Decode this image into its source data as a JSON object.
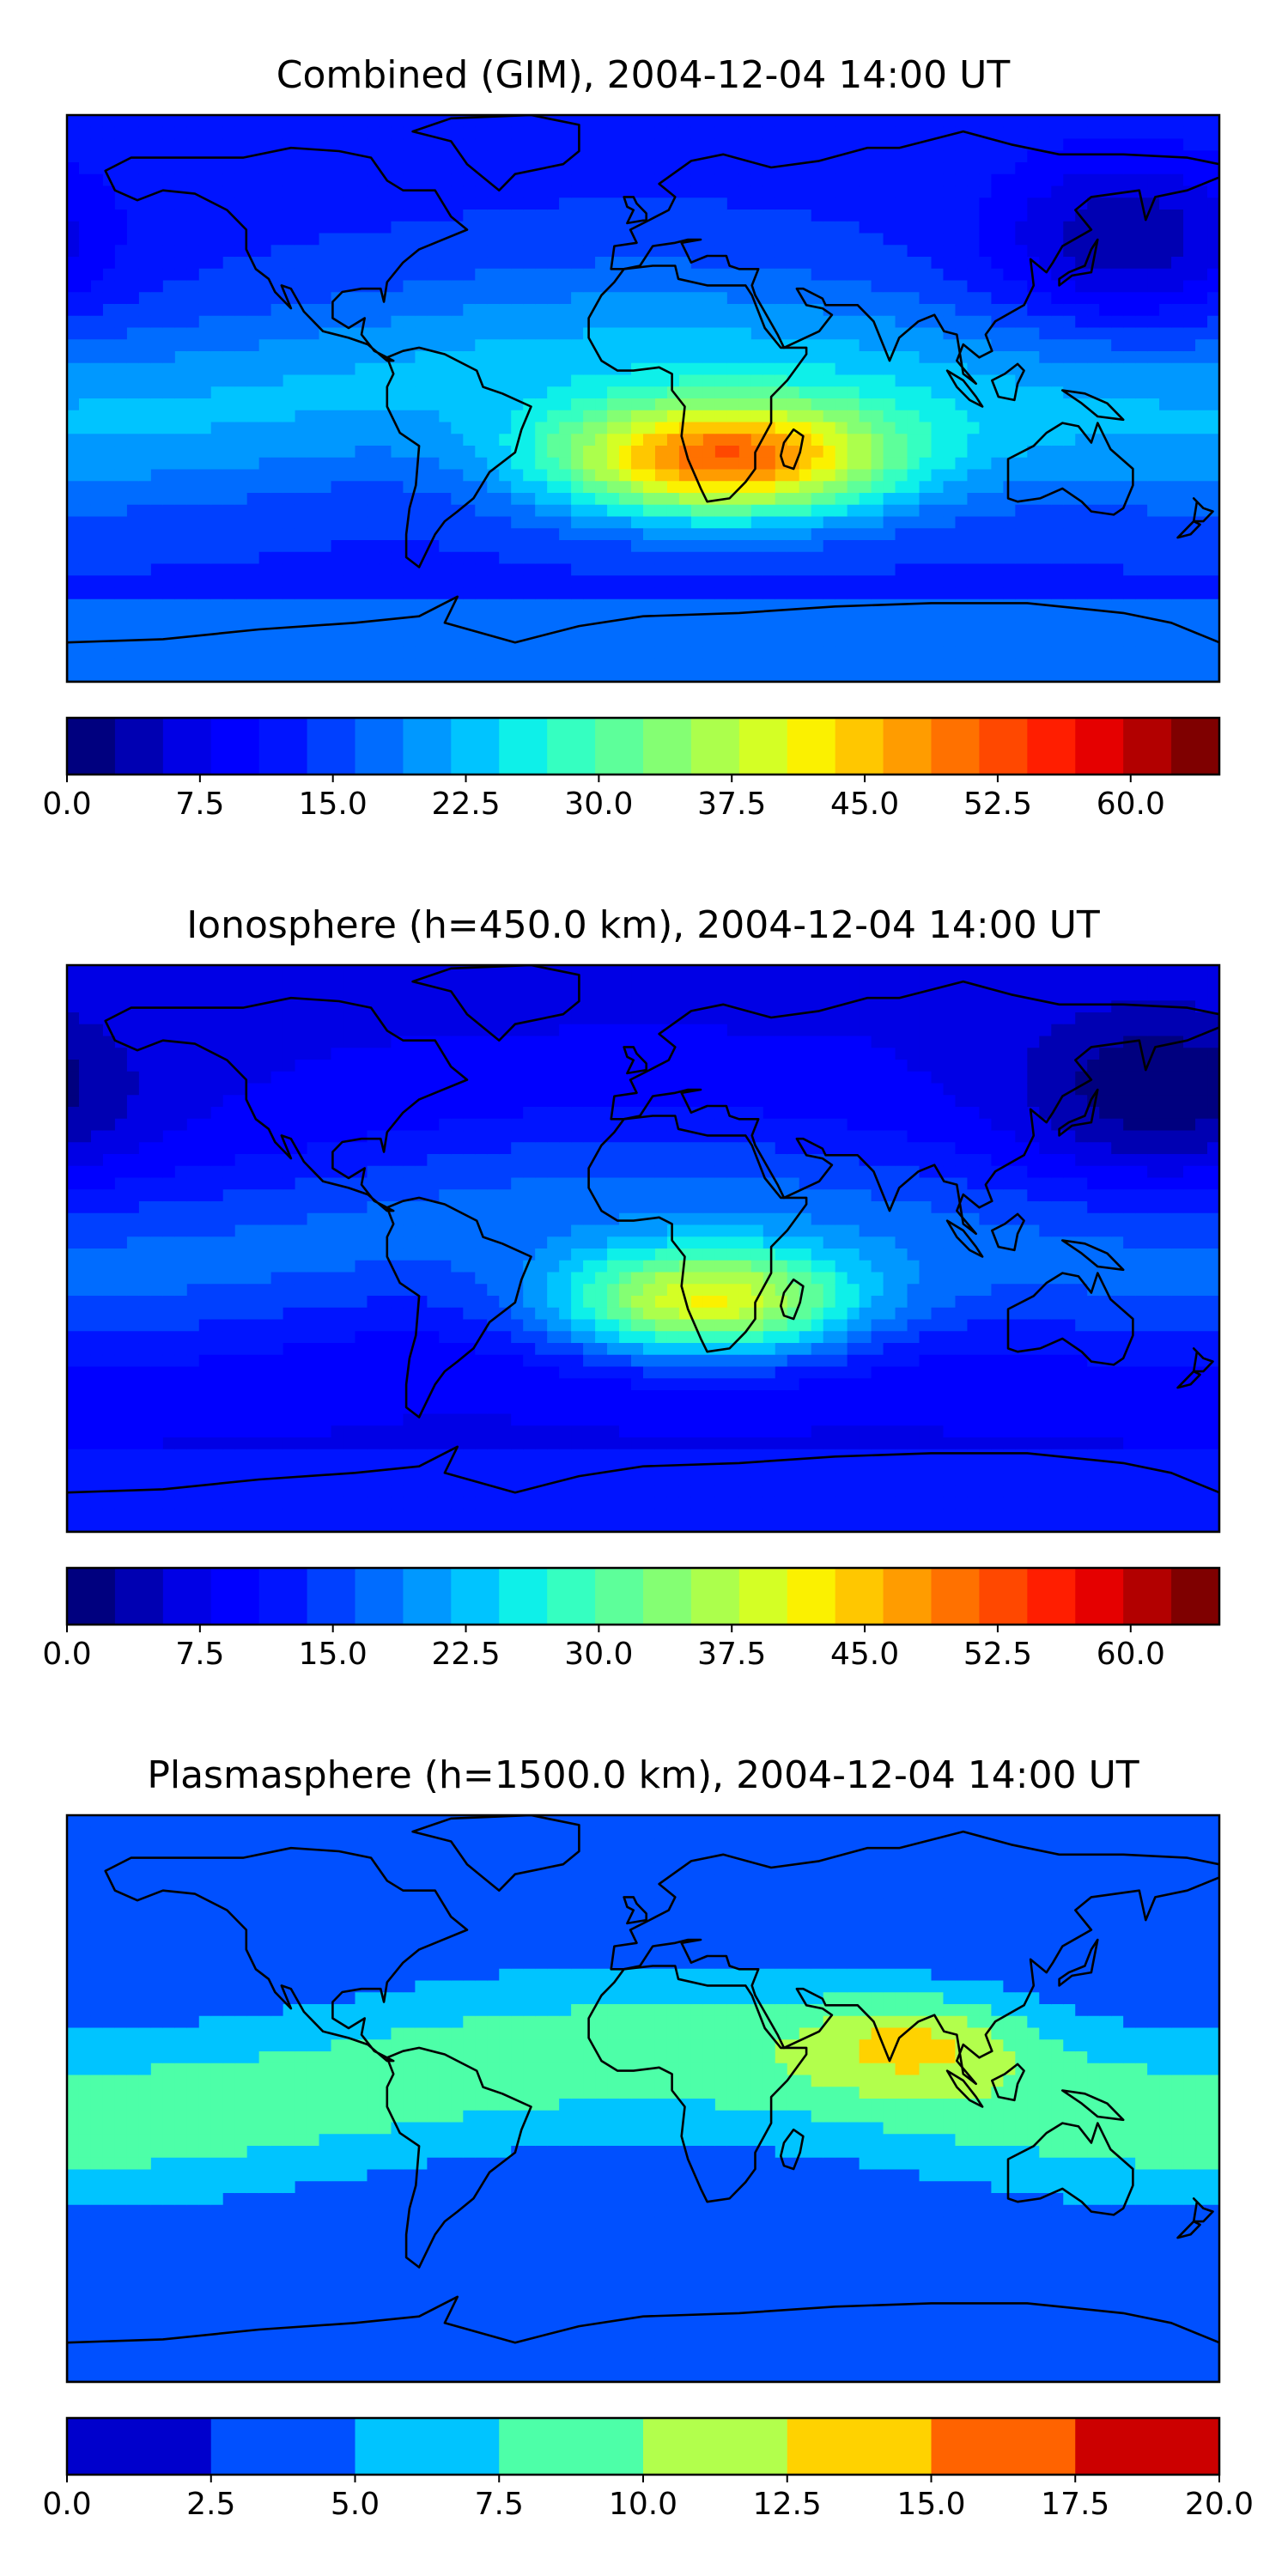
{
  "chart_data": [
    {
      "type": "heatmap",
      "title": "Combined (GIM), 2004-12-04 14:00 UT",
      "colorbar": {
        "ticks": [
          "0.0",
          "7.5",
          "15.0",
          "22.5",
          "30.0",
          "37.5",
          "45.0",
          "52.5",
          "60.0"
        ],
        "range": [
          0,
          65
        ],
        "levels": 26,
        "colors": [
          "#00007f",
          "#0000b2",
          "#0000e5",
          "#0000ff",
          "#0014ff",
          "#0040ff",
          "#006cff",
          "#0098ff",
          "#00c4ff",
          "#0ef0e9",
          "#35ffc1",
          "#5dff9a",
          "#84ff73",
          "#acff4c",
          "#d4ff25",
          "#fbf100",
          "#ffc700",
          "#ff9c00",
          "#ff7100",
          "#ff4800",
          "#ff1e00",
          "#e50000",
          "#b20000",
          "#7f0000"
        ]
      },
      "field": {
        "base": 13,
        "ridge": 9,
        "peak_lon": 25,
        "peak_lat": -22,
        "peak_amp": 36,
        "peak_w_lon": 55,
        "peak_w_lat": 18,
        "night_lon": 150,
        "night_amp": 10
      }
    },
    {
      "type": "heatmap",
      "title": "Ionosphere  (h=450.0 km), 2004-12-04 14:00 UT",
      "colorbar": {
        "ticks": [
          "0.0",
          "7.5",
          "15.0",
          "22.5",
          "30.0",
          "37.5",
          "45.0",
          "52.5",
          "60.0"
        ],
        "range": [
          0,
          65
        ],
        "levels": 26,
        "colors": [
          "#00007f",
          "#0000b2",
          "#0000e5",
          "#0000ff",
          "#0014ff",
          "#0040ff",
          "#006cff",
          "#0098ff",
          "#00c4ff",
          "#0ef0e9",
          "#35ffc1",
          "#5dff9a",
          "#84ff73",
          "#acff4c",
          "#d4ff25",
          "#fbf100",
          "#ffc700",
          "#ff9c00",
          "#ff7100",
          "#ff4800",
          "#ff1e00",
          "#e50000",
          "#b20000",
          "#7f0000"
        ]
      },
      "field": {
        "base": 8,
        "ridge": 9,
        "peak_lon": 20,
        "peak_lat": -20,
        "peak_amp": 30,
        "peak_w_lon": 48,
        "peak_w_lat": 17,
        "night_lon": 160,
        "night_amp": 8
      }
    },
    {
      "type": "heatmap",
      "title": "Plasmasphere (h=1500.0 km), 2004-12-04 14:00 UT",
      "colorbar": {
        "ticks": [
          "0.0",
          "2.5",
          "5.0",
          "7.5",
          "10.0",
          "12.5",
          "15.0",
          "17.5",
          "20.0"
        ],
        "range": [
          0,
          20
        ],
        "levels": 8,
        "colors": [
          "#0000cc",
          "#0050ff",
          "#00c4ff",
          "#4dffa8",
          "#b2ff4c",
          "#ffd200",
          "#ff6300",
          "#cc0000"
        ]
      },
      "field": {
        "base": 2.5,
        "ridge": 6.5,
        "peak_lon": 85,
        "peak_lat": 15,
        "peak_amp": 5.5,
        "peak_w_lon": 35,
        "peak_w_lat": 15,
        "night_lon": -170,
        "night_amp": 0
      }
    }
  ]
}
